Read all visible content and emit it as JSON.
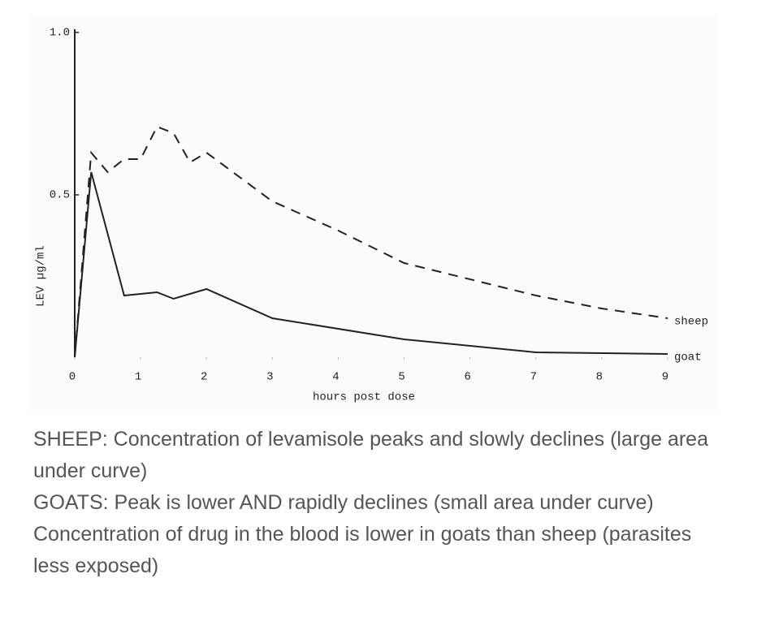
{
  "chart_data": {
    "type": "line",
    "ylabel": "LEV µg/ml",
    "xlabel": "hours post dose",
    "xlim": [
      0,
      9
    ],
    "xticks": [
      0,
      1,
      2,
      3,
      4,
      5,
      6,
      7,
      8,
      9
    ],
    "ylim": [
      0,
      1
    ],
    "yticks": [
      0.5,
      {
        "value": 1,
        "label": "1.0"
      }
    ],
    "series": [
      {
        "name": "sheep",
        "color": "#222222",
        "dashed": true,
        "x": [
          0,
          0.25,
          0.5,
          0.75,
          1,
          1.25,
          1.5,
          1.75,
          2,
          3,
          4,
          5,
          7,
          8,
          9
        ],
        "values": [
          0,
          0.63,
          0.57,
          0.61,
          0.61,
          0.71,
          0.69,
          0.6,
          0.63,
          0.48,
          0.39,
          0.29,
          0.19,
          0.15,
          0.12
        ]
      },
      {
        "name": "goat",
        "color": "#222222",
        "dashed": false,
        "x": [
          0,
          0.25,
          0.75,
          1.25,
          1.5,
          2,
          3,
          5,
          7,
          9
        ],
        "values": [
          0,
          0.57,
          0.19,
          0.2,
          0.18,
          0.21,
          0.12,
          0.055,
          0.015,
          0.01
        ]
      }
    ]
  },
  "caption": [
    "SHEEP: Concentration of levamisole peaks and slowly declines (large area under curve)",
    "GOATS: Peak is lower AND rapidly declines (small area under curve)",
    "Concentration of drug in the blood is lower in goats than sheep (parasites less exposed)"
  ]
}
